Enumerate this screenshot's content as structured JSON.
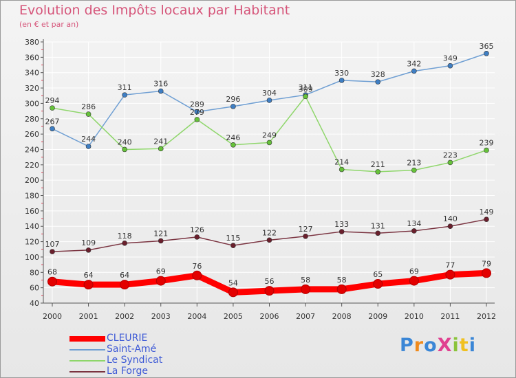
{
  "title": "Evolution des Impôts locaux par Habitant",
  "subtitle": "(en € et par an)",
  "brand": "ProXiti",
  "colors": {
    "title": "#d6557a",
    "legend_text": "#3e5ad6",
    "grid": "#ffffff",
    "axis": "#555555",
    "marker_accent": "#e0455a"
  },
  "chart_data": {
    "type": "line",
    "title": "Evolution des Impôts locaux par Habitant",
    "subtitle": "(en € et par an)",
    "xlabel": "",
    "ylabel": "",
    "categories": [
      "2000",
      "2001",
      "2002",
      "2003",
      "2004",
      "2005",
      "2006",
      "2007",
      "2008",
      "2009",
      "2010",
      "2011",
      "2012"
    ],
    "ylim": [
      40,
      380
    ],
    "ytick_step": 20,
    "grid": true,
    "legend_position": "bottom-left",
    "series": [
      {
        "name": "CLEURIE",
        "color": "#ff0000",
        "marker": "#e30000",
        "emphasis": true,
        "values": [
          68,
          64,
          64,
          69,
          76,
          54,
          56,
          58,
          58,
          65,
          69,
          77,
          79
        ]
      },
      {
        "name": "Saint-Amé",
        "color": "#6f9fd3",
        "marker": "#3f7fc4",
        "emphasis": false,
        "values": [
          267,
          244,
          311,
          316,
          289,
          296,
          304,
          311,
          330,
          328,
          342,
          349,
          365
        ]
      },
      {
        "name": "Le Syndicat",
        "color": "#8ed66a",
        "marker": "#66c23a",
        "emphasis": false,
        "values": [
          294,
          286,
          240,
          241,
          279,
          246,
          249,
          309,
          214,
          211,
          213,
          223,
          239
        ]
      },
      {
        "name": "La Forge",
        "color": "#7a3340",
        "marker": "#6a1f2c",
        "emphasis": false,
        "values": [
          107,
          109,
          118,
          121,
          126,
          115,
          122,
          127,
          133,
          131,
          134,
          140,
          149
        ]
      }
    ]
  }
}
